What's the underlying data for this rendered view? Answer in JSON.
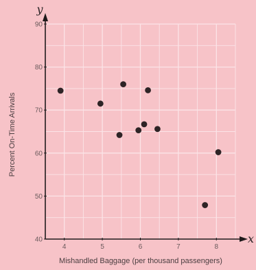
{
  "chart_data": {
    "type": "scatter",
    "title": "",
    "xlabel": "Mishandled Baggage (per thousand passengers)",
    "ylabel": "Percent On-Time Arrivals",
    "x_axis_letter": "x",
    "y_axis_letter": "y",
    "xlim": [
      3.5,
      8.5
    ],
    "ylim": [
      40,
      90
    ],
    "x_ticks": [
      4,
      5,
      6,
      7,
      8
    ],
    "y_ticks": [
      40,
      50,
      60,
      70,
      80,
      90
    ],
    "grid": true,
    "colors": {
      "background": "#f7c3c8",
      "grid": "#fbe4e7",
      "point": "#2e2426",
      "axis": "#1f1a1b"
    },
    "points": [
      {
        "x": 3.9,
        "y": 74.5
      },
      {
        "x": 4.95,
        "y": 71.5
      },
      {
        "x": 5.45,
        "y": 64.2
      },
      {
        "x": 5.55,
        "y": 76
      },
      {
        "x": 5.95,
        "y": 65.3
      },
      {
        "x": 6.1,
        "y": 66.7
      },
      {
        "x": 6.2,
        "y": 74.6
      },
      {
        "x": 6.45,
        "y": 65.6
      },
      {
        "x": 7.7,
        "y": 47.9
      },
      {
        "x": 8.05,
        "y": 60.2
      }
    ]
  }
}
